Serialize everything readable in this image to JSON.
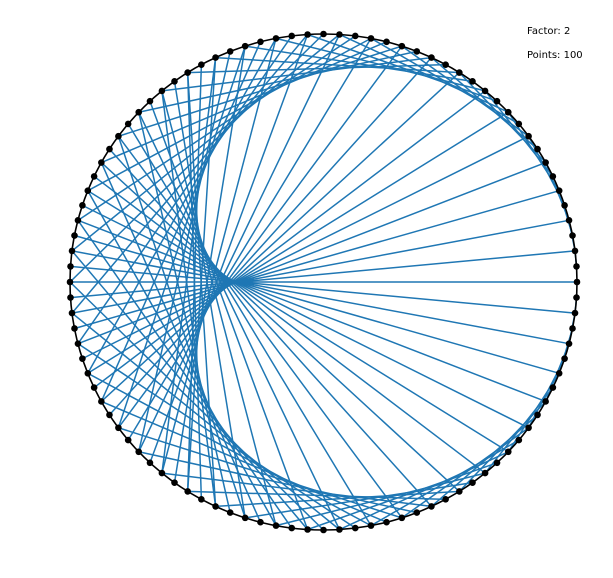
{
  "labels": {
    "factor": "Factor: 2",
    "points": "Points: 100"
  },
  "diagram": {
    "type": "times-table-circle",
    "factor": 2,
    "points": 100,
    "colors": {
      "chord": "#1f77b4",
      "circle": "#000000",
      "point": "#000000"
    }
  }
}
